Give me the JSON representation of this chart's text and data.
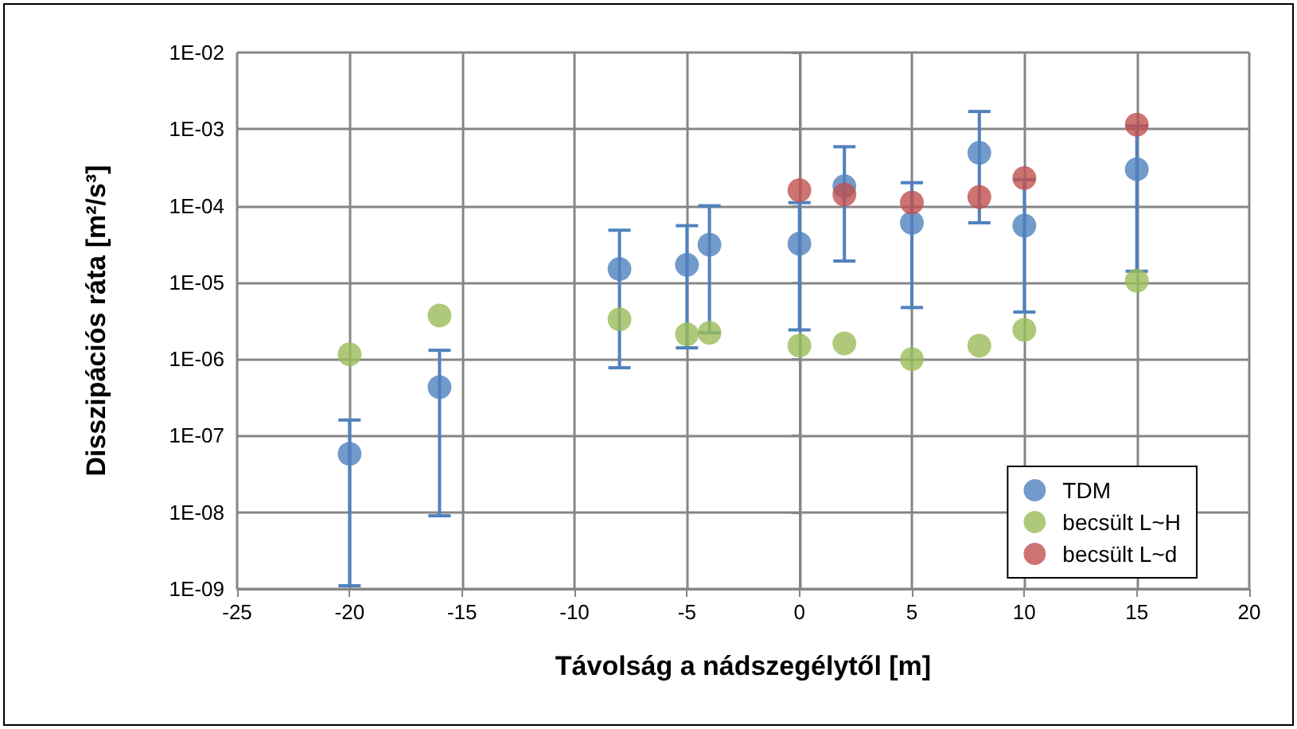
{
  "chart_data": {
    "type": "scatter",
    "xlabel": "Távolság a nádszegélytől [m]",
    "ylabel": "Disszipációs ráta [m²/s³]",
    "xlim": [
      -25,
      20
    ],
    "xticks": [
      -25,
      -20,
      -15,
      -10,
      -5,
      0,
      5,
      10,
      15,
      20
    ],
    "ylim": [
      1e-09,
      0.01
    ],
    "log": "y",
    "yticks": [
      {
        "value": 1e-09,
        "label": "1E-09"
      },
      {
        "value": 1e-08,
        "label": "1E-08"
      },
      {
        "value": 1e-07,
        "label": "1E-07"
      },
      {
        "value": 1e-06,
        "label": "1E-06"
      },
      {
        "value": 1e-05,
        "label": "1E-05"
      },
      {
        "value": 0.0001,
        "label": "1E-04"
      },
      {
        "value": 0.001,
        "label": "1E-03"
      },
      {
        "value": 0.01,
        "label": "1E-02"
      }
    ],
    "grid": true,
    "legend": "bottom right",
    "marker": "circle",
    "series": [
      {
        "name": "TDM",
        "color": "#4f81bd",
        "x": [
          -20,
          -16,
          -8,
          -5,
          -4,
          0,
          2,
          5,
          8,
          10,
          15
        ],
        "values": [
          5.8e-08,
          4.3e-07,
          1.5e-05,
          1.7e-05,
          3.1e-05,
          3.2e-05,
          0.00018,
          6e-05,
          0.00049,
          5.5e-05,
          0.0003
        ],
        "errors": [
          [
            1.1e-09,
            1.6e-07
          ],
          [
            9e-09,
            1.3e-06
          ],
          [
            7.7e-07,
            4.8e-05
          ],
          [
            1.4e-06,
            5.5e-05
          ],
          [
            2.2e-06,
            0.0001
          ],
          [
            2.4e-06,
            0.00011
          ],
          [
            1.9e-05,
            0.00059
          ],
          [
            4.7e-06,
            0.0002
          ],
          [
            6e-05,
            0.0017
          ],
          [
            4.1e-06,
            0.00022
          ],
          [
            1.4e-05,
            0.0011
          ]
        ]
      },
      {
        "name": "becsült L~H",
        "color": "#9bbb59",
        "x": [
          -20,
          -16,
          -8,
          -5,
          -4,
          0,
          2,
          5,
          8,
          10,
          15
        ],
        "values": [
          1.15e-06,
          3.7e-06,
          3.3e-06,
          2.1e-06,
          2.2e-06,
          1.5e-06,
          1.6e-06,
          1e-06,
          1.5e-06,
          2.4e-06,
          1.05e-05
        ]
      },
      {
        "name": "becsült L~d",
        "color": "#c0504d",
        "x": [
          0,
          2,
          5,
          8,
          10,
          15
        ],
        "values": [
          0.00016,
          0.00014,
          0.00011,
          0.00013,
          0.00023,
          0.00114
        ]
      }
    ]
  }
}
